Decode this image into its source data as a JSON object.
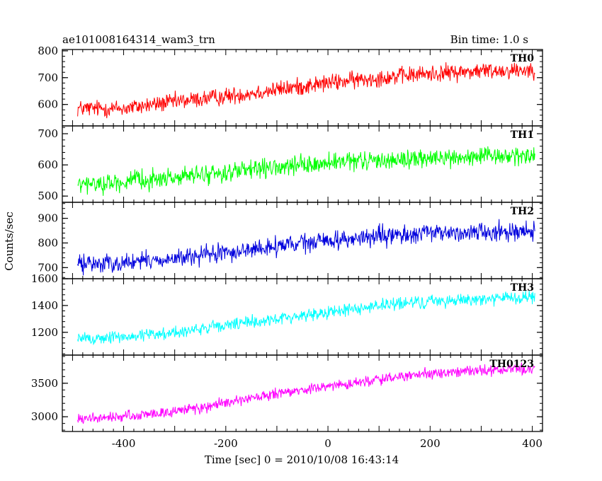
{
  "chart_data": {
    "type": "line",
    "title": "ae101008164314_wam3_trn",
    "subtitle": "Bin time: 1.0 s",
    "xlabel": "Time [sec] 0 = 2010/10/08 16:43:14",
    "ylabel": "Counts/sec",
    "xlim": [
      -520,
      420
    ],
    "x_ticks": [
      -400,
      -200,
      0,
      200,
      400
    ],
    "x_range_data": [
      -490,
      405
    ],
    "grid": false,
    "panels": [
      {
        "name": "TH0",
        "color": "#ff0000",
        "ylim": [
          520,
          805
        ],
        "y_ticks": [
          600,
          700,
          800
        ],
        "x": [
          -490,
          -400,
          -300,
          -200,
          -100,
          0,
          100,
          200,
          300,
          405
        ],
        "y": [
          585,
          585,
          610,
          630,
          655,
          680,
          700,
          715,
          725,
          730
        ],
        "noise_amplitude": 30
      },
      {
        "name": "TH1",
        "color": "#00ff00",
        "ylim": [
          480,
          725
        ],
        "y_ticks": [
          500,
          600,
          700
        ],
        "x": [
          -490,
          -400,
          -300,
          -200,
          -100,
          0,
          100,
          200,
          300,
          405
        ],
        "y": [
          535,
          545,
          560,
          575,
          590,
          605,
          615,
          620,
          625,
          630
        ],
        "noise_amplitude": 28
      },
      {
        "name": "TH2",
        "color": "#0000dd",
        "ylim": [
          655,
          965
        ],
        "y_ticks": [
          700,
          800,
          900
        ],
        "x": [
          -490,
          -400,
          -300,
          -200,
          -100,
          0,
          100,
          200,
          300,
          405
        ],
        "y": [
          715,
          720,
          735,
          760,
          785,
          810,
          825,
          840,
          845,
          850
        ],
        "noise_amplitude": 35
      },
      {
        "name": "TH3",
        "color": "#00ffff",
        "ylim": [
          1030,
          1600
        ],
        "y_ticks": [
          1200,
          1400,
          1600
        ],
        "x": [
          -490,
          -400,
          -300,
          -200,
          -100,
          0,
          100,
          200,
          300,
          405
        ],
        "y": [
          1150,
          1165,
          1200,
          1250,
          1300,
          1350,
          1400,
          1430,
          1450,
          1460
        ],
        "noise_amplitude": 45
      },
      {
        "name": "TH0123",
        "color": "#ff00ff",
        "ylim": [
          2780,
          3920
        ],
        "y_ticks": [
          3000,
          3500
        ],
        "x": [
          -490,
          -400,
          -300,
          -200,
          -100,
          0,
          100,
          200,
          300,
          405
        ],
        "y": [
          2960,
          3000,
          3080,
          3200,
          3340,
          3450,
          3560,
          3640,
          3690,
          3720
        ],
        "noise_amplitude": 75
      }
    ]
  }
}
